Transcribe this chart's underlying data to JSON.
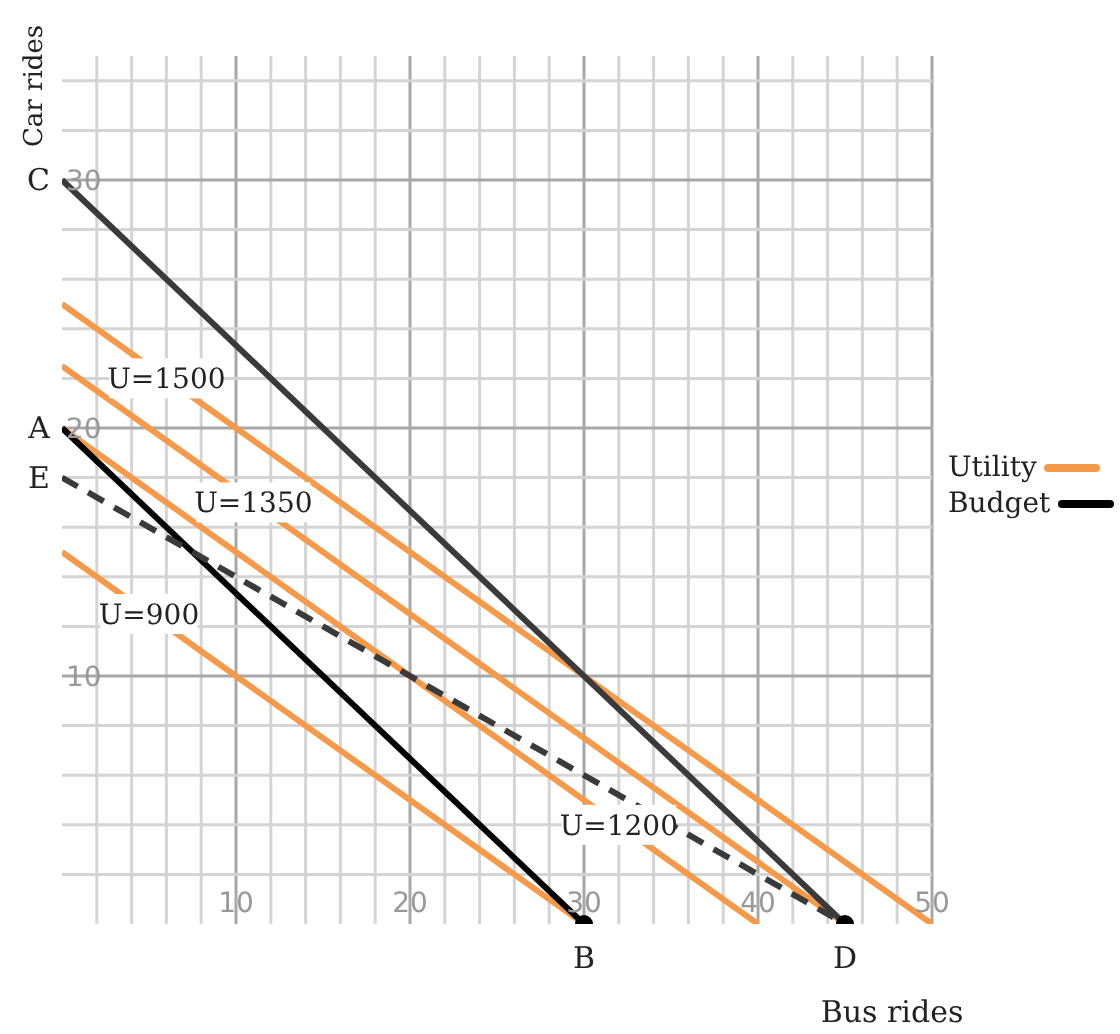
{
  "chart_data": {
    "type": "line",
    "xlabel": "Bus rides",
    "ylabel": "Car rides",
    "xlim": [
      0,
      50
    ],
    "ylim": [
      0,
      35
    ],
    "xticks": [
      {
        "value": 2,
        "label": null
      },
      {
        "value": 4,
        "label": null
      },
      {
        "value": 6,
        "label": null
      },
      {
        "value": 8,
        "label": null
      },
      10,
      {
        "value": 12,
        "label": null
      },
      {
        "value": 14,
        "label": null
      },
      {
        "value": 16,
        "label": null
      },
      {
        "value": 18,
        "label": null
      },
      20,
      {
        "value": 22,
        "label": null
      },
      {
        "value": 24,
        "label": null
      },
      {
        "value": 26,
        "label": null
      },
      {
        "value": 28,
        "label": null
      },
      30,
      {
        "value": 32,
        "label": null
      },
      {
        "value": 34,
        "label": null
      },
      {
        "value": 36,
        "label": null
      },
      {
        "value": 38,
        "label": null
      },
      40,
      {
        "value": 42,
        "label": null
      },
      {
        "value": 44,
        "label": null
      },
      {
        "value": 46,
        "label": null
      },
      {
        "value": 48,
        "label": null
      },
      50
    ],
    "yticks": [
      {
        "value": 2,
        "label": null
      },
      {
        "value": 4,
        "label": null
      },
      {
        "value": 6,
        "label": null
      },
      {
        "value": 8,
        "label": null
      },
      10,
      {
        "value": 12,
        "label": null
      },
      {
        "value": 14,
        "label": null
      },
      {
        "value": 16,
        "label": null
      },
      {
        "value": 18,
        "label": null
      },
      20,
      {
        "value": 22,
        "label": null
      },
      {
        "value": 24,
        "label": null
      },
      {
        "value": 26,
        "label": null
      },
      {
        "value": 28,
        "label": null
      },
      30,
      {
        "value": 32,
        "label": null
      },
      {
        "value": 34,
        "label": null
      }
    ],
    "grid": true,
    "legend": "right",
    "marker": "none",
    "line_style": "solid",
    "series": [
      {
        "name": "Utility",
        "color": "#f59a4a",
        "x": [
          0,
          30
        ],
        "values": [
          15,
          0
        ]
      },
      {
        "color": "#f59a4a",
        "x": [
          0,
          40
        ],
        "values": [
          20,
          0
        ]
      },
      {
        "color": "#f59a4a",
        "x": [
          0,
          45
        ],
        "values": [
          22.5,
          0
        ]
      },
      {
        "color": "#f59a4a",
        "x": [
          0,
          50
        ],
        "values": [
          25,
          0
        ]
      },
      {
        "name": "Budget",
        "color": "#000000",
        "x": [
          0,
          30
        ],
        "values": [
          20,
          0
        ]
      },
      {
        "color": "#3a3a3a",
        "x": [
          0,
          45
        ],
        "values": [
          30,
          0
        ]
      },
      {
        "color": "#3a3a3a",
        "x": [
          0,
          45
        ],
        "values": [
          18,
          0
        ],
        "line_style": "dashed"
      },
      {
        "type": "scatter",
        "color": "#000000",
        "x": [
          30,
          45
        ],
        "values": [
          0,
          0
        ],
        "marker": "circle"
      }
    ],
    "annotations": [
      {
        "text": "U=1500",
        "x": 6,
        "y": 22
      },
      {
        "text": "U=1350",
        "x": 11,
        "y": 17
      },
      {
        "text": "U=900",
        "x": 5,
        "y": 12.5
      },
      {
        "text": "U=1200",
        "x": 32,
        "y": 4
      },
      {
        "text": "C",
        "x": 0,
        "y": 30
      },
      {
        "text": "A",
        "x": 0,
        "y": 20
      },
      {
        "text": "E",
        "x": 0,
        "y": 18
      },
      {
        "text": "B",
        "x": 30,
        "y": 0
      },
      {
        "text": "D",
        "x": 45,
        "y": 0
      }
    ]
  }
}
